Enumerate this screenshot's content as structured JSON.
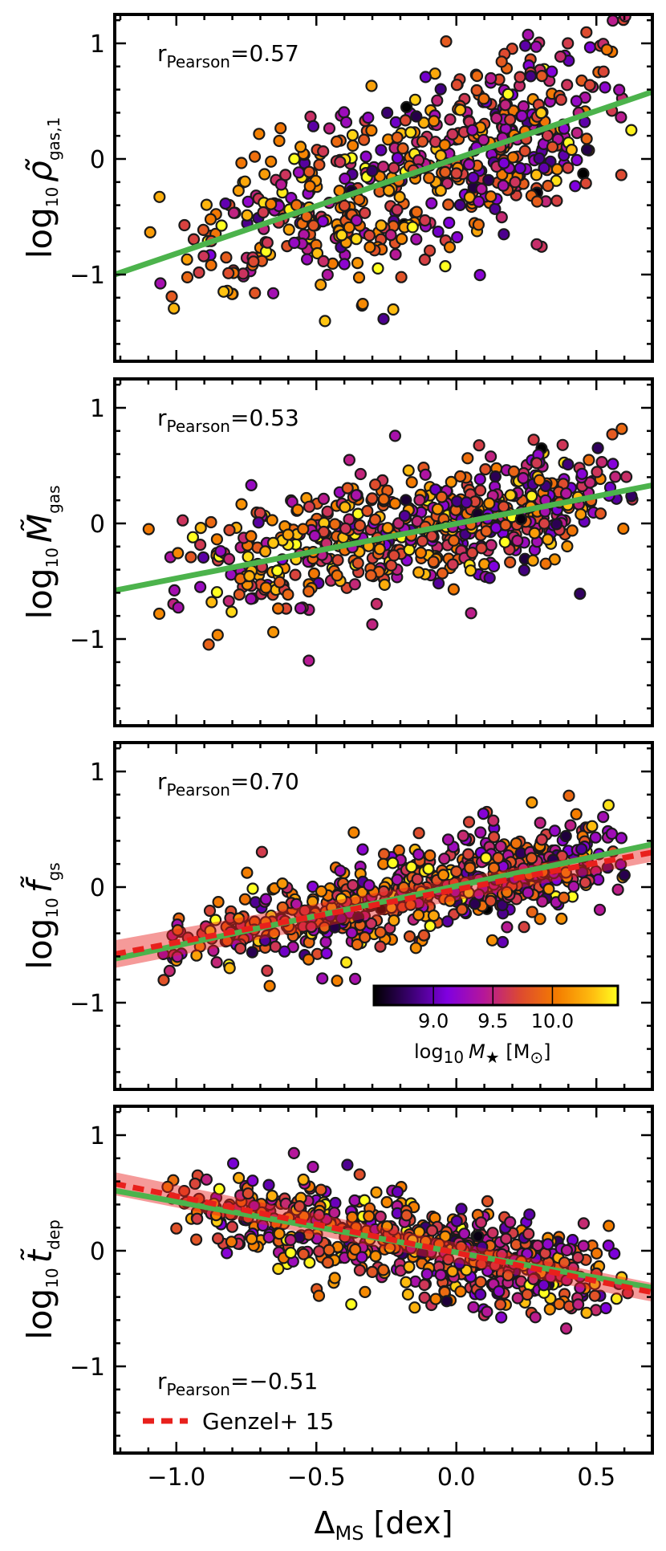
{
  "figure": {
    "x_axis_label_main": "Δ",
    "x_axis_label_sub": "MS",
    "x_axis_label_unit": " [dex]",
    "pearson_prefix": "r",
    "pearson_sub": "Pearson",
    "pearson_equals": "=",
    "colorbar_label_prefix": "log",
    "colorbar_label_base": "10",
    "colorbar_label_var": "M",
    "colorbar_label_star": "★",
    "colorbar_label_unit_open": " [M",
    "colorbar_label_unit_sun": "⊙",
    "colorbar_label_unit_close": "]"
  },
  "chart_data": [
    {
      "type": "scatter",
      "panel": 1,
      "ylabel_prefix": "log",
      "ylabel_base": "10",
      "ylabel_var": "ρ̃",
      "ylabel_sub": "gas,1",
      "pearson_value": "0.57",
      "xlim": [
        -1.22,
        0.7
      ],
      "ylim": [
        -1.75,
        1.25
      ],
      "xticks": [
        -1.0,
        -0.5,
        0.0,
        0.5
      ],
      "yticks": [
        -1,
        0,
        1
      ],
      "ytick_labels": [
        "−1",
        "0",
        "1"
      ],
      "fit_line": {
        "x": [
          -1.22,
          0.7
        ],
        "y": [
          -1.0,
          0.58
        ],
        "color": "#4cb34c"
      },
      "scatter_summary": {
        "n_points": 600,
        "x_range": [
          -1.15,
          0.65
        ],
        "trend_slope": 0.82,
        "scatter_sigma": 0.38
      },
      "color": "log10 stellar mass"
    },
    {
      "type": "scatter",
      "panel": 2,
      "ylabel_prefix": "log",
      "ylabel_base": "10",
      "ylabel_var": "M̃",
      "ylabel_sub": "gas",
      "pearson_value": "0.53",
      "xlim": [
        -1.22,
        0.7
      ],
      "ylim": [
        -1.75,
        1.25
      ],
      "xticks": [
        -1.0,
        -0.5,
        0.0,
        0.5
      ],
      "yticks": [
        -1,
        0,
        1
      ],
      "ytick_labels": [
        "−1",
        "0",
        "1"
      ],
      "fit_line": {
        "x": [
          -1.22,
          0.7
        ],
        "y": [
          -0.58,
          0.33
        ],
        "color": "#4cb34c"
      },
      "scatter_summary": {
        "n_points": 600,
        "x_range": [
          -1.15,
          0.65
        ],
        "trend_slope": 0.47,
        "scatter_sigma": 0.26
      },
      "color": "log10 stellar mass"
    },
    {
      "type": "scatter",
      "panel": 3,
      "ylabel_prefix": "log",
      "ylabel_base": "10",
      "ylabel_var": "f̃",
      "ylabel_sub": "gs",
      "pearson_value": "0.70",
      "xlim": [
        -1.22,
        0.7
      ],
      "ylim": [
        -1.75,
        1.25
      ],
      "xticks": [
        -1.0,
        -0.5,
        0.0,
        0.5
      ],
      "yticks": [
        -1,
        0,
        1
      ],
      "ytick_labels": [
        "−1",
        "0",
        "1"
      ],
      "fit_line": {
        "x": [
          -1.22,
          0.7
        ],
        "y": [
          -0.62,
          0.37
        ],
        "color": "#4cb34c"
      },
      "genzel_line": {
        "x": [
          -1.22,
          0.7
        ],
        "y": [
          -0.58,
          0.3
        ],
        "band_halfwidth_at_ends": [
          0.12,
          0.08
        ],
        "color": "#e8201c"
      },
      "scatter_summary": {
        "n_points": 600,
        "x_range": [
          -1.15,
          0.65
        ],
        "trend_slope": 0.52,
        "scatter_sigma": 0.2
      },
      "colorbar": {
        "range": [
          8.5,
          10.55
        ],
        "ticks": [
          9.0,
          9.5,
          10.0
        ],
        "tick_labels": [
          "9.0",
          "9.5",
          "10.0"
        ],
        "colormap": "gnuplot"
      }
    },
    {
      "type": "scatter",
      "panel": 4,
      "ylabel_prefix": "log",
      "ylabel_base": "10",
      "ylabel_var": "t̃",
      "ylabel_sub": "dep",
      "pearson_value": "−0.51",
      "xlim": [
        -1.22,
        0.7
      ],
      "ylim": [
        -1.75,
        1.25
      ],
      "xticks": [
        -1.0,
        -0.5,
        0.0,
        0.5
      ],
      "xtick_labels": [
        "−1.0",
        "−0.5",
        "0.0",
        "0.5"
      ],
      "yticks": [
        -1,
        0,
        1
      ],
      "ytick_labels": [
        "−1",
        "0",
        "1"
      ],
      "fit_line": {
        "x": [
          -1.22,
          0.7
        ],
        "y": [
          0.52,
          -0.32
        ],
        "color": "#4cb34c"
      },
      "genzel_line": {
        "x": [
          -1.22,
          0.7
        ],
        "y": [
          0.58,
          -0.36
        ],
        "band_halfwidth_at_ends": [
          0.1,
          0.08
        ],
        "color": "#e8201c"
      },
      "scatter_summary": {
        "n_points": 600,
        "x_range": [
          -1.15,
          0.65
        ],
        "trend_slope": -0.44,
        "scatter_sigma": 0.2
      },
      "legend": {
        "label": "Genzel+ 15",
        "style": "dashed red",
        "placement": "lower-left"
      }
    }
  ]
}
